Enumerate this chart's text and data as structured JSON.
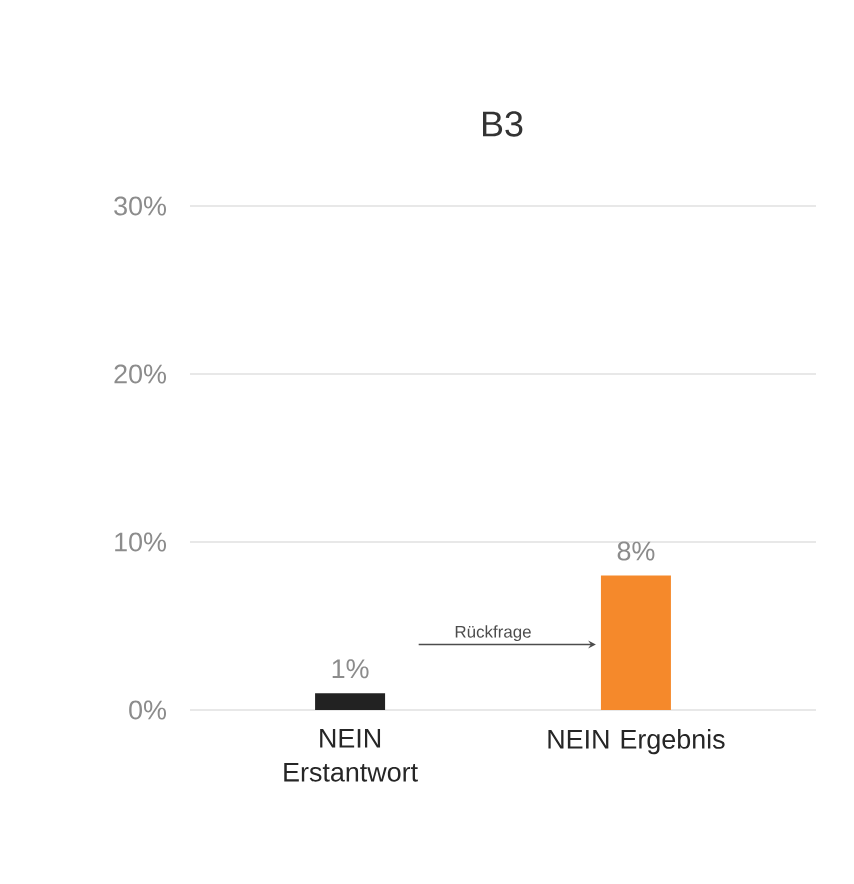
{
  "chart_data": {
    "type": "bar",
    "title": "B3",
    "categories": [
      "NEIN Erstantwort",
      "NEIN Ergebnis"
    ],
    "values": [
      1,
      8
    ],
    "colors": [
      "#222222",
      "#f5892b"
    ],
    "value_labels": [
      "1%",
      "8%"
    ],
    "ylim": [
      0,
      30
    ],
    "yticks": [
      {
        "value": 0,
        "label": "0%"
      },
      {
        "value": 10,
        "label": "10%"
      },
      {
        "value": 20,
        "label": "20%"
      },
      {
        "value": 30,
        "label": "30%"
      }
    ],
    "grid": "y",
    "annotations": [
      "Rückfrage"
    ]
  }
}
